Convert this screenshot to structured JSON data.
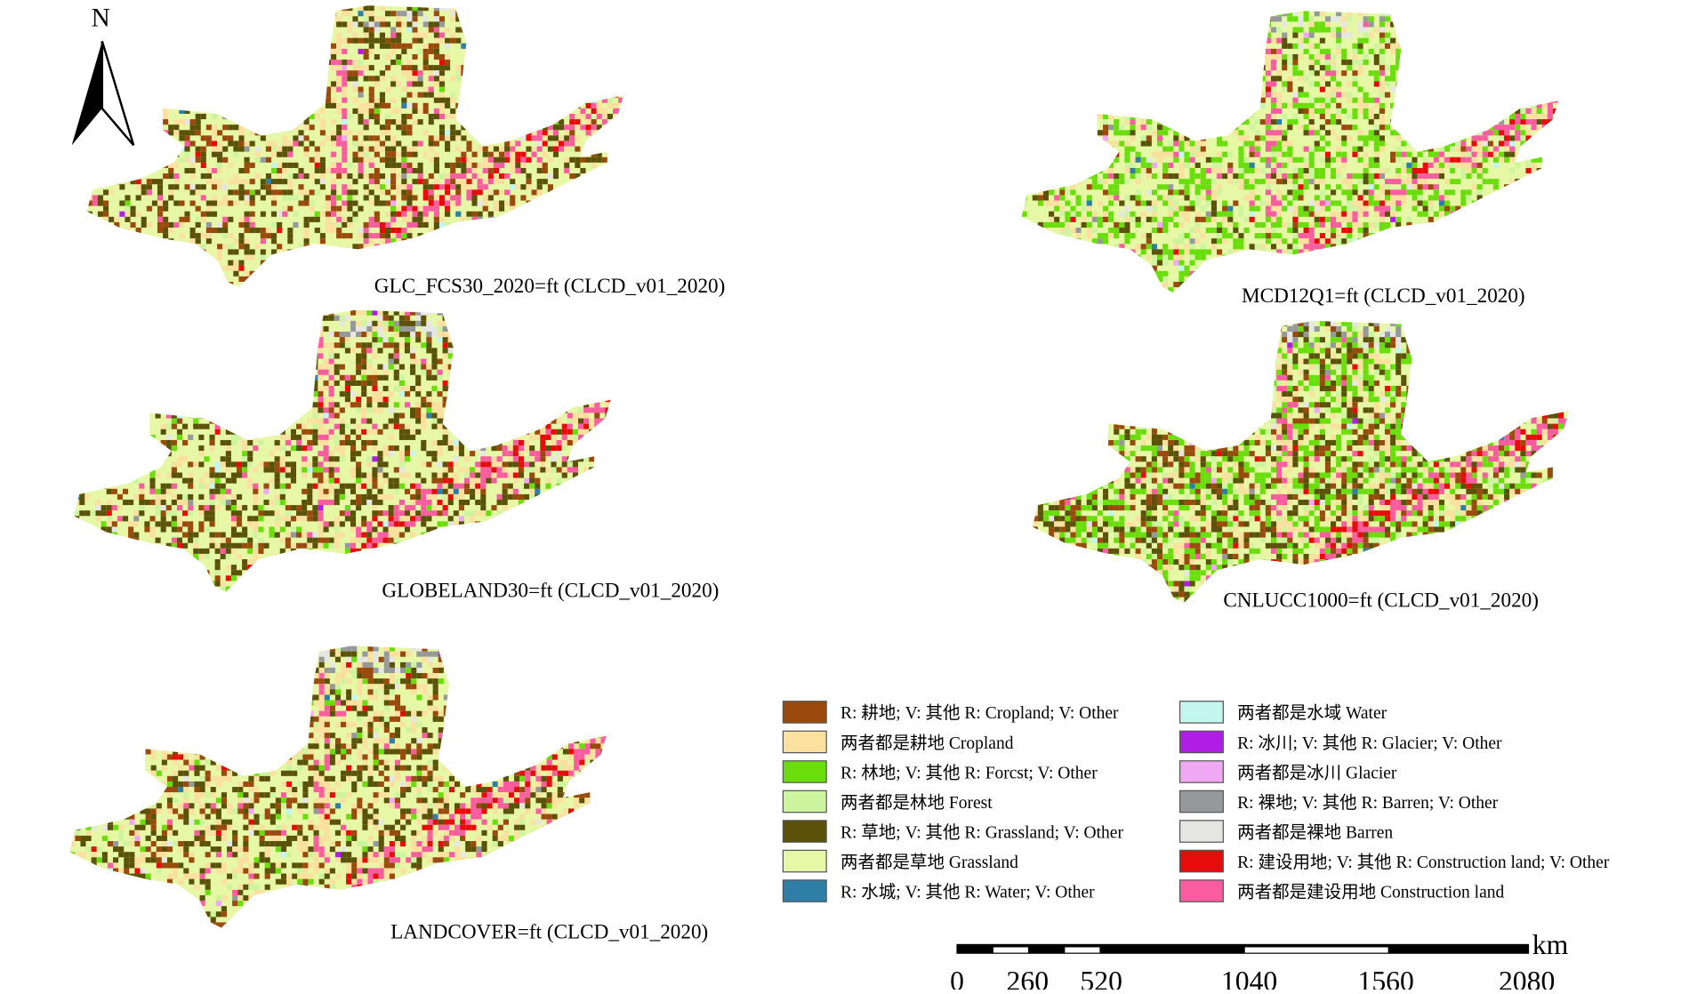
{
  "north_arrow": {
    "label": "N"
  },
  "maps": [
    {
      "id": "glc",
      "label": "GLC_FCS30_2020=ft (CLCD_v01_2020)"
    },
    {
      "id": "mcd",
      "label": "MCD12Q1=ft (CLCD_v01_2020)"
    },
    {
      "id": "globe",
      "label": "GLOBELAND30=ft (CLCD_v01_2020)"
    },
    {
      "id": "cnlucc",
      "label": "CNLUCC1000=ft (CLCD_v01_2020)"
    },
    {
      "id": "landcover",
      "label": "LANDCOVER=ft (CLCD_v01_2020)"
    }
  ],
  "legend": {
    "items": [
      {
        "label": "R: 耕地; V: 其他 R: Cropland; V: Other",
        "color": "#9a4a0c"
      },
      {
        "label": "两者都是耕地 Cropland",
        "color": "#fbe0a0"
      },
      {
        "label": "R: 林地; V: 其他 R: Forcst; V: Other",
        "color": "#6ade0c"
      },
      {
        "label": "两者都是林地 Forest",
        "color": "#cdf5a0"
      },
      {
        "label": "R: 草地; V: 其他 R: Grassland; V: Other",
        "color": "#5a5208"
      },
      {
        "label": "两者都是草地 Grassland",
        "color": "#e6f8a6"
      },
      {
        "label": "R: 水城; V: 其他 R: Water; V: Other",
        "color": "#2e7ea6"
      },
      {
        "label": "两者都是水域 Water",
        "color": "#c2f6ee"
      },
      {
        "label": "R: 冰川; V: 其他 R: Glacier; V: Other",
        "color": "#b01ee6"
      },
      {
        "label": "两者都是冰川 Glacier",
        "color": "#f0a8f2"
      },
      {
        "label": "R: 裸地; V: 其他 R: Barren; V: Other",
        "color": "#96999c"
      },
      {
        "label": "两者都是裸地 Barren",
        "color": "#e6e6e4"
      },
      {
        "label": "R: 建设用地; V: 其他 R: Construction land; V: Other",
        "color": "#e60c0c"
      },
      {
        "label": "两者都是建设用地 Construction land",
        "color": "#fa5ca0"
      }
    ]
  },
  "scale_bar": {
    "unit": "km",
    "ticks": [
      "0",
      "260",
      "520",
      "1040",
      "1560",
      "2080"
    ]
  }
}
